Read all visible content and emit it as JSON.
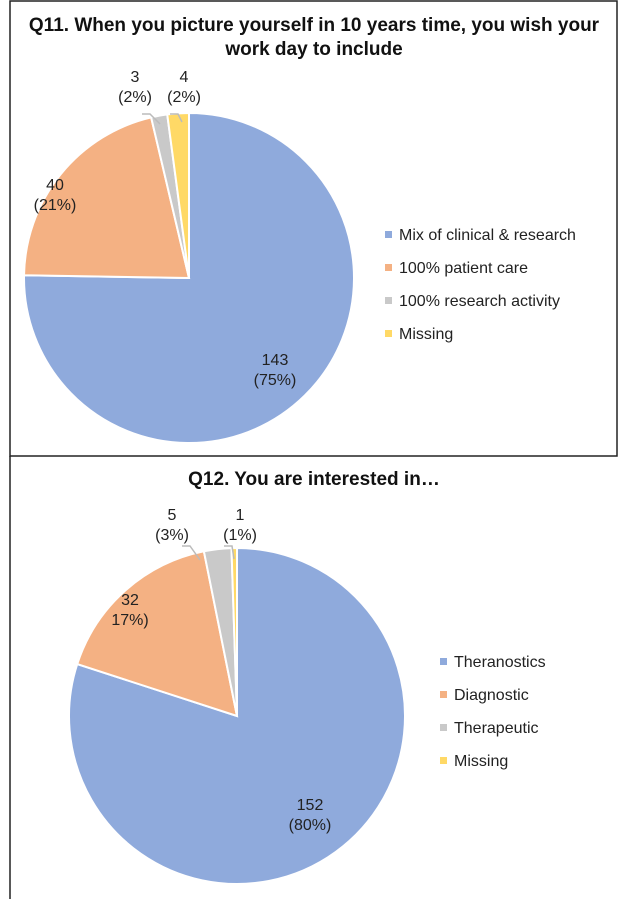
{
  "chart_data": [
    {
      "type": "pie",
      "title": "Q11. When you picture yourself in 10 years time, you wish your work day to include",
      "categories": [
        "Mix of clinical & research",
        "100% patient care",
        "100% research activity",
        "Missing"
      ],
      "values": [
        143,
        40,
        3,
        4
      ],
      "value_labels": [
        [
          "143",
          "(75%)"
        ],
        [
          "40",
          "(21%)"
        ],
        [
          "3",
          "(2%)"
        ],
        [
          "4",
          "(2%)"
        ]
      ],
      "colors": [
        "#8faadc",
        "#f4b183",
        "#c9c9c9",
        "#ffd966"
      ]
    },
    {
      "type": "pie",
      "title": "Q12. You are interested in…",
      "categories": [
        "Theranostics",
        "Diagnostic",
        "Therapeutic",
        "Missing"
      ],
      "values": [
        152,
        32,
        5,
        1
      ],
      "value_labels": [
        [
          "152",
          "(80%)"
        ],
        [
          "32",
          "17%)"
        ],
        [
          "5",
          "(3%)"
        ],
        [
          "1",
          "(1%)"
        ]
      ],
      "colors": [
        "#8faadc",
        "#f4b183",
        "#c9c9c9",
        "#ffd966"
      ]
    }
  ]
}
